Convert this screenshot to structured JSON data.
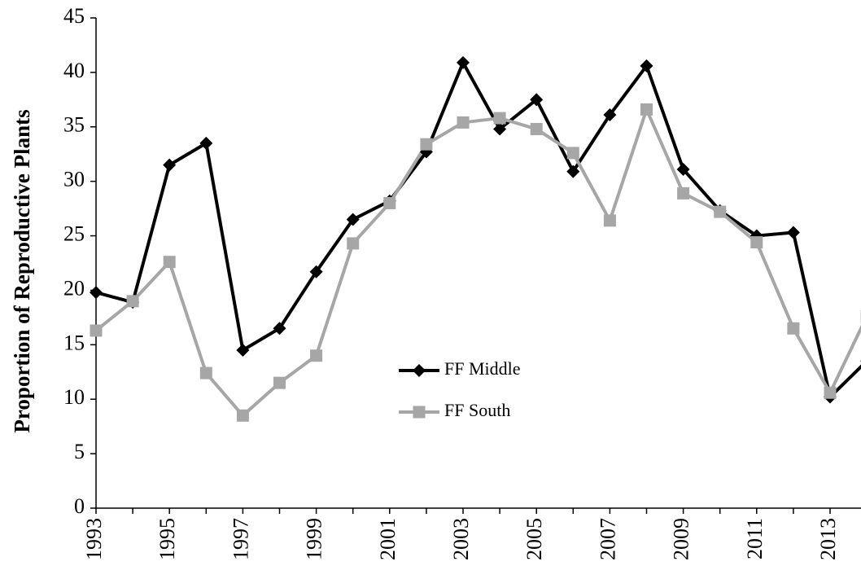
{
  "chart_data": {
    "type": "line",
    "y_label": "Proportion of Reproductive Plants",
    "categories": [
      "1993",
      null,
      "1995",
      null,
      "1997",
      null,
      "1999",
      null,
      "2001",
      null,
      "2003",
      null,
      "2005",
      null,
      "2007",
      null,
      "2009",
      null,
      "2011",
      null,
      "2013",
      null
    ],
    "series": [
      {
        "name": "FF Middle",
        "color": "#000000",
        "marker": "diamond",
        "values": [
          19.8,
          18.9,
          31.5,
          33.5,
          14.5,
          16.5,
          21.7,
          26.5,
          28.2,
          32.7,
          40.9,
          34.8,
          37.5,
          30.9,
          36.1,
          40.6,
          31.1,
          27.3,
          25.0,
          25.3,
          10.2,
          13.5
        ]
      },
      {
        "name": "FF South",
        "color": "#a6a6a6",
        "marker": "square",
        "values": [
          16.3,
          19.0,
          22.6,
          12.4,
          8.5,
          11.5,
          14.0,
          24.3,
          28.0,
          33.4,
          35.4,
          35.8,
          34.8,
          32.6,
          26.4,
          36.6,
          28.9,
          27.2,
          24.4,
          16.5,
          10.6,
          17.6
        ]
      }
    ],
    "ylim": [
      0,
      45
    ],
    "yticks": [
      0,
      5,
      10,
      15,
      20,
      25,
      30,
      35,
      40,
      45
    ],
    "grid": false
  }
}
